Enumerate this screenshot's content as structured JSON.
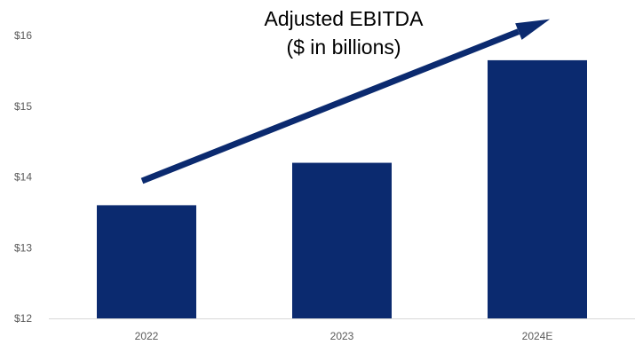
{
  "chart_data": {
    "type": "bar",
    "title": "Adjusted EBITDA",
    "subtitle": "($ in billions)",
    "categories": [
      "2022",
      "2023",
      "2024E"
    ],
    "values": [
      13.6,
      14.2,
      15.65
    ],
    "ylim": [
      12,
      16
    ],
    "yticks": [
      "$12",
      "$13",
      "$14",
      "$15",
      "$16"
    ],
    "ytick_values": [
      12,
      13,
      14,
      15,
      16
    ],
    "grid": false,
    "legend": "none",
    "bar_color": "#0b2a6f",
    "arrow_color": "#0b2a6f",
    "annotation": "upward trend arrow"
  }
}
